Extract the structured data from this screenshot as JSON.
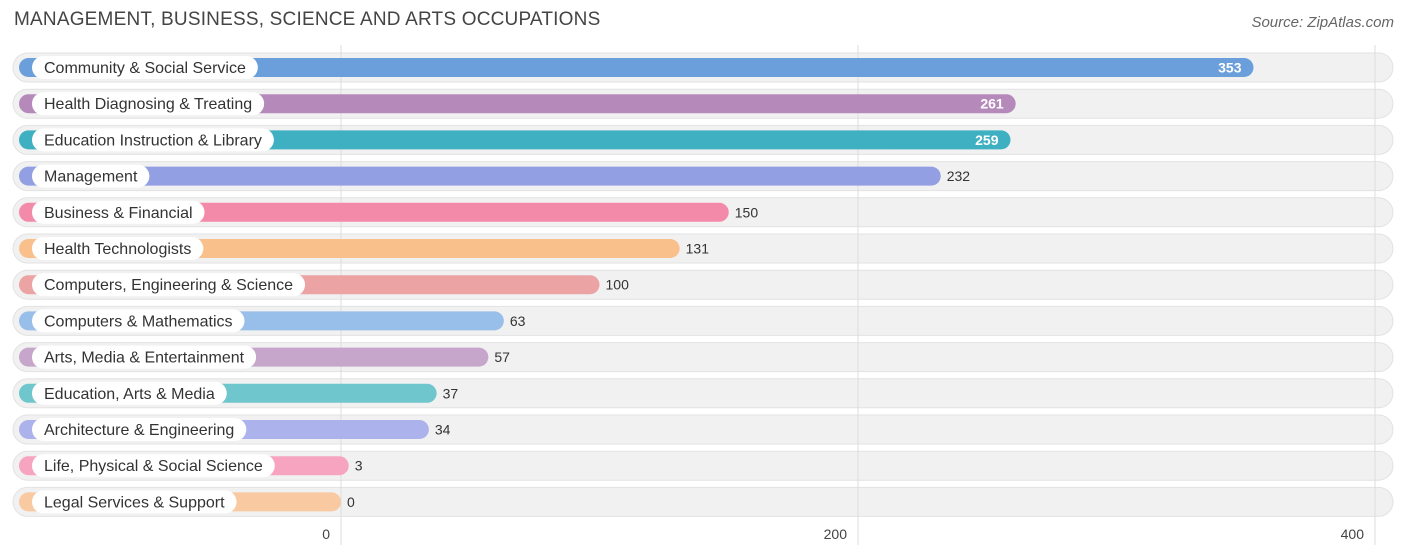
{
  "header": {
    "title": "MANAGEMENT, BUSINESS, SCIENCE AND ARTS OCCUPATIONS",
    "source": "Source: ZipAtlas.com"
  },
  "chart_data": {
    "type": "bar",
    "orientation": "horizontal",
    "categories": [
      "Community & Social Service",
      "Health Diagnosing & Treating",
      "Education Instruction & Library",
      "Management",
      "Business & Financial",
      "Health Technologists",
      "Computers, Engineering & Science",
      "Computers & Mathematics",
      "Arts, Media & Entertainment",
      "Education, Arts & Media",
      "Architecture & Engineering",
      "Life, Physical & Social Science",
      "Legal Services & Support"
    ],
    "values": [
      353,
      261,
      259,
      232,
      150,
      131,
      100,
      63,
      57,
      37,
      34,
      3,
      0
    ],
    "colors": [
      "#6a9fdc",
      "#b58abb",
      "#3fb0c1",
      "#929fe2",
      "#f48aaa",
      "#f9c08c",
      "#eba3a3",
      "#98bfe9",
      "#c7a6cb",
      "#6fc6cd",
      "#acb3ec",
      "#f6a4c0",
      "#f9c9a1"
    ],
    "xlim": [
      0,
      400
    ],
    "xticks": [
      0,
      200,
      400
    ],
    "grid": true
  }
}
